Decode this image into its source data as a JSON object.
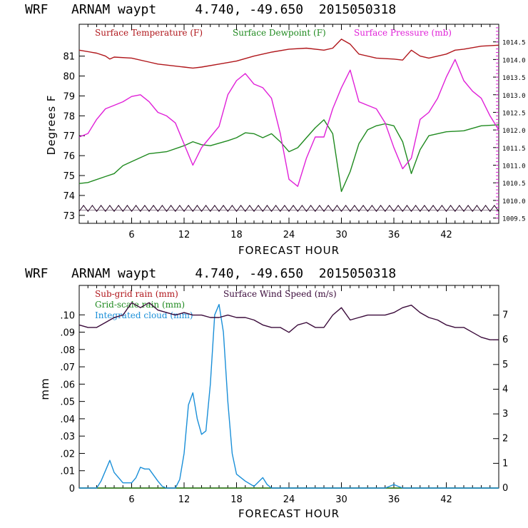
{
  "colors": {
    "temperature": "#b0161b",
    "dewpoint": "#1f8a1f",
    "pressure": "#e020d8",
    "wind": "#3a0a3a",
    "cloud": "#1a8fd8",
    "subgrid_rain": "#b0161b",
    "grid_rain": "#1f8a1f"
  },
  "chart_data": [
    {
      "type": "line",
      "title": "WRF   ARNAM waypt     4.740, -49.650  2015050318",
      "xlabel": "FORECAST HOUR",
      "ylabel": "Degrees F",
      "xlim": [
        0,
        48
      ],
      "ylim": [
        72.6,
        82.6
      ],
      "right_ylim": [
        1009.35,
        1015.0
      ],
      "x_ticks": [
        6,
        12,
        18,
        24,
        30,
        36,
        42
      ],
      "x_tick_labels": [
        "6",
        "12",
        "18",
        "24",
        "30",
        "36",
        "42"
      ],
      "y_ticks": [
        73,
        74,
        75,
        76,
        77,
        78,
        79,
        80,
        81
      ],
      "y_tick_labels": [
        "73",
        "74",
        "75",
        "76",
        "77",
        "78",
        "79",
        "80",
        "81"
      ],
      "right_ticks": [
        1009.5,
        1010.0,
        1010.5,
        1011.0,
        1011.5,
        1012.0,
        1012.5,
        1013.0,
        1013.5,
        1014.0,
        1014.5
      ],
      "right_tick_labels": [
        "1009.5",
        "1010.0",
        "1010.5",
        "1011.0",
        "1011.5",
        "1012.0",
        "1012.5",
        "1013.0",
        "1013.5",
        "1014.0",
        "1014.5"
      ],
      "series": [
        {
          "name": "Surface Temperature (F)",
          "axis": "left",
          "x": [
            0,
            2,
            3,
            3.5,
            4,
            6,
            8,
            9,
            10,
            12,
            13,
            14,
            16,
            18,
            20,
            22,
            24,
            26,
            28,
            29,
            30,
            31,
            32,
            34,
            36,
            37,
            38,
            39,
            40,
            42,
            43,
            44,
            46,
            48
          ],
          "y": [
            81.3,
            81.15,
            81.0,
            80.85,
            80.95,
            80.9,
            80.7,
            80.6,
            80.55,
            80.45,
            80.4,
            80.45,
            80.6,
            80.75,
            81.0,
            81.2,
            81.35,
            81.4,
            81.3,
            81.4,
            81.85,
            81.6,
            81.1,
            80.9,
            80.85,
            80.8,
            81.3,
            81.0,
            80.9,
            81.1,
            81.3,
            81.35,
            81.5,
            81.55
          ]
        },
        {
          "name": "Surface Dewpoint (F)",
          "axis": "left",
          "x": [
            0,
            1,
            3,
            4,
            5,
            6,
            8,
            10,
            12,
            13,
            14,
            15,
            17,
            18,
            19,
            20,
            21,
            22,
            23,
            24,
            25,
            26,
            27,
            28,
            29,
            30,
            31,
            32,
            33,
            34,
            35,
            36,
            37,
            38,
            39,
            40,
            42,
            44,
            46,
            48
          ],
          "y": [
            74.6,
            74.65,
            74.95,
            75.1,
            75.5,
            75.7,
            76.1,
            76.2,
            76.5,
            76.7,
            76.55,
            76.5,
            76.75,
            76.9,
            77.15,
            77.1,
            76.9,
            77.1,
            76.7,
            76.2,
            76.4,
            76.9,
            77.4,
            77.8,
            77.1,
            74.2,
            75.2,
            76.6,
            77.3,
            77.5,
            77.6,
            77.5,
            76.7,
            75.1,
            76.3,
            77.0,
            77.2,
            77.25,
            77.5,
            77.55
          ]
        },
        {
          "name": "Surface Pressure (mb)",
          "axis": "right",
          "x": [
            0,
            1,
            2,
            3,
            4,
            5,
            6,
            7,
            8,
            9,
            10,
            11,
            12,
            13,
            14,
            15,
            16,
            17,
            18,
            19,
            20,
            21,
            22,
            23,
            24,
            25,
            26,
            27,
            28,
            29,
            30,
            31,
            32,
            33,
            34,
            35,
            36,
            37,
            38,
            39,
            40,
            41,
            42,
            43,
            44,
            45,
            46,
            47,
            48
          ],
          "y": [
            1011.8,
            1011.9,
            1012.3,
            1012.6,
            1012.7,
            1012.8,
            1012.95,
            1013.0,
            1012.8,
            1012.5,
            1012.4,
            1012.2,
            1011.6,
            1011.0,
            1011.5,
            1011.8,
            1012.1,
            1013.0,
            1013.4,
            1013.6,
            1013.3,
            1013.2,
            1012.9,
            1011.9,
            1010.6,
            1010.4,
            1011.2,
            1011.8,
            1011.8,
            1012.6,
            1013.2,
            1013.7,
            1012.8,
            1012.7,
            1012.6,
            1012.2,
            1011.5,
            1010.9,
            1011.2,
            1012.3,
            1012.5,
            1012.9,
            1013.5,
            1014.0,
            1013.4,
            1013.1,
            1012.9,
            1012.4,
            1012.0
          ]
        }
      ],
      "hatch_band": {
        "y_low": 73.2,
        "y_high": 73.5
      }
    },
    {
      "type": "line",
      "title": "WRF   ARNAM waypt     4.740, -49.650  2015050318",
      "xlabel": "FORECAST HOUR",
      "ylabel": "mm",
      "xlim": [
        0,
        48
      ],
      "ylim": [
        0,
        0.117
      ],
      "right_ylim": [
        0,
        8.2
      ],
      "x_ticks": [
        6,
        12,
        18,
        24,
        30,
        36,
        42
      ],
      "x_tick_labels": [
        "6",
        "12",
        "18",
        "24",
        "30",
        "36",
        "42"
      ],
      "y_ticks": [
        0,
        0.01,
        0.02,
        0.03,
        0.04,
        0.05,
        0.06,
        0.07,
        0.08,
        0.09,
        0.1
      ],
      "y_tick_labels": [
        "0",
        ".01",
        ".02",
        ".03",
        ".04",
        ".05",
        ".06",
        ".07",
        ".08",
        ".09",
        ".10"
      ],
      "right_ticks": [
        0,
        1,
        2,
        3,
        4,
        5,
        6,
        7
      ],
      "right_tick_labels": [
        "0",
        "1",
        "2",
        "3",
        "4",
        "5",
        "6",
        "7"
      ],
      "series": [
        {
          "name": "Sub-grid rain (mm)",
          "axis": "left",
          "x": [
            0,
            48
          ],
          "y": [
            0,
            0
          ]
        },
        {
          "name": "Grid-scale rain (mm)",
          "axis": "left",
          "x": [
            0,
            48
          ],
          "y": [
            0,
            0
          ]
        },
        {
          "name": "Integrated cloud (mm)",
          "axis": "left",
          "x": [
            0,
            1,
            2,
            2.5,
            3,
            3.5,
            4,
            5,
            6,
            6.5,
            7,
            7.5,
            8,
            9,
            9.5,
            10,
            11,
            11.5,
            12,
            12.5,
            13,
            13.5,
            14,
            14.5,
            15,
            15.5,
            16,
            16.5,
            17,
            17.5,
            18,
            19,
            20,
            21,
            21.5,
            22,
            22.5,
            23,
            35,
            35.5,
            36,
            36.5,
            37,
            48
          ],
          "y": [
            0,
            0,
            0,
            0.004,
            0.01,
            0.016,
            0.009,
            0.003,
            0.003,
            0.006,
            0.012,
            0.011,
            0.011,
            0.004,
            0.001,
            0,
            0,
            0.005,
            0.02,
            0.048,
            0.055,
            0.04,
            0.031,
            0.033,
            0.06,
            0.1,
            0.106,
            0.09,
            0.05,
            0.02,
            0.008,
            0.004,
            0.001,
            0.006,
            0.002,
            0,
            0,
            0,
            0,
            0.001,
            0.002,
            0.001,
            0,
            0
          ]
        },
        {
          "name": "Surface Wind Speed (m/s)",
          "axis": "right",
          "x": [
            0,
            1,
            2,
            3,
            4,
            5,
            6,
            7,
            8,
            9,
            10,
            11,
            12,
            13,
            14,
            15,
            16,
            17,
            18,
            19,
            20,
            21,
            22,
            23,
            24,
            25,
            26,
            27,
            28,
            29,
            30,
            31,
            32,
            33,
            34,
            35,
            36,
            37,
            38,
            39,
            40,
            41,
            42,
            43,
            44,
            45,
            46,
            47,
            48
          ],
          "y": [
            6.6,
            6.5,
            6.5,
            6.7,
            6.9,
            7.0,
            7.5,
            7.3,
            7.5,
            7.2,
            7.1,
            7.0,
            7.1,
            7.0,
            7.0,
            6.9,
            6.9,
            7.0,
            6.9,
            6.9,
            6.8,
            6.6,
            6.5,
            6.5,
            6.3,
            6.6,
            6.7,
            6.5,
            6.5,
            7.0,
            7.3,
            6.8,
            6.9,
            7.0,
            7.0,
            7.0,
            7.1,
            7.3,
            7.4,
            7.1,
            6.9,
            6.8,
            6.6,
            6.5,
            6.5,
            6.3,
            6.1,
            6.0,
            6.0
          ]
        }
      ]
    }
  ]
}
